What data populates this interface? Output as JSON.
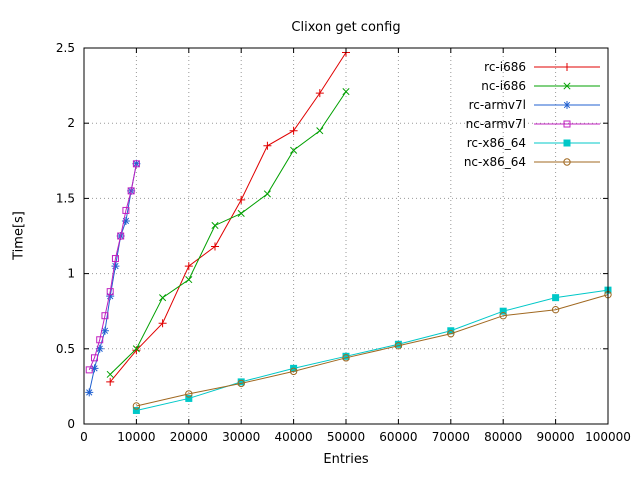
{
  "chart_data": {
    "type": "line",
    "title": "Clixon get config",
    "xlabel": "Entries",
    "ylabel": "Time[s]",
    "xlim": [
      0,
      100000
    ],
    "ylim": [
      0,
      2.5
    ],
    "xticks": [
      0,
      10000,
      20000,
      30000,
      40000,
      50000,
      60000,
      70000,
      80000,
      90000,
      100000
    ],
    "xtick_labels": [
      "0",
      "10000",
      "20000",
      "30000",
      "40000",
      "50000",
      "60000",
      "70000",
      "80000",
      "90000",
      "100000"
    ],
    "yticks": [
      0,
      0.5,
      1,
      1.5,
      2,
      2.5
    ],
    "ytick_labels": [
      "0",
      "0.5",
      "1",
      "1.5",
      "2",
      "2.5"
    ],
    "grid": true,
    "legend_position": "top-right-inside",
    "series": [
      {
        "name": "rc-i686",
        "color": "#e00000",
        "marker": "plus",
        "x": [
          5000,
          10000,
          15000,
          20000,
          25000,
          30000,
          35000,
          40000,
          45000,
          50000
        ],
        "y": [
          0.28,
          0.49,
          0.67,
          1.05,
          1.18,
          1.49,
          1.85,
          1.95,
          2.2,
          2.47
        ]
      },
      {
        "name": "nc-i686",
        "color": "#00a000",
        "marker": "cross",
        "x": [
          5000,
          10000,
          15000,
          20000,
          25000,
          30000,
          35000,
          40000,
          45000,
          50000
        ],
        "y": [
          0.33,
          0.5,
          0.84,
          0.96,
          1.32,
          1.4,
          1.53,
          1.82,
          1.95,
          2.21
        ]
      },
      {
        "name": "rc-armv7l",
        "color": "#2060d0",
        "marker": "asterisk",
        "x": [
          1000,
          2000,
          3000,
          4000,
          5000,
          6000,
          7000,
          8000,
          9000,
          10000
        ],
        "y": [
          0.21,
          0.37,
          0.5,
          0.62,
          0.85,
          1.05,
          1.25,
          1.35,
          1.55,
          1.73
        ]
      },
      {
        "name": "nc-armv7l",
        "color": "#c020c0",
        "marker": "square-open",
        "x": [
          1000,
          2000,
          3000,
          4000,
          5000,
          6000,
          7000,
          8000,
          9000,
          10000
        ],
        "y": [
          0.36,
          0.44,
          0.56,
          0.72,
          0.88,
          1.1,
          1.25,
          1.42,
          1.55,
          1.73
        ]
      },
      {
        "name": "rc-x86_64",
        "color": "#00c8c8",
        "marker": "square-filled",
        "x": [
          10000,
          20000,
          30000,
          40000,
          50000,
          60000,
          70000,
          80000,
          90000,
          100000
        ],
        "y": [
          0.09,
          0.17,
          0.28,
          0.37,
          0.45,
          0.53,
          0.62,
          0.75,
          0.84,
          0.89
        ]
      },
      {
        "name": "nc-x86_64",
        "color": "#a06820",
        "marker": "circle-open",
        "x": [
          10000,
          20000,
          30000,
          40000,
          50000,
          60000,
          70000,
          80000,
          90000,
          100000
        ],
        "y": [
          0.12,
          0.2,
          0.27,
          0.35,
          0.44,
          0.52,
          0.6,
          0.72,
          0.76,
          0.86
        ]
      }
    ]
  }
}
